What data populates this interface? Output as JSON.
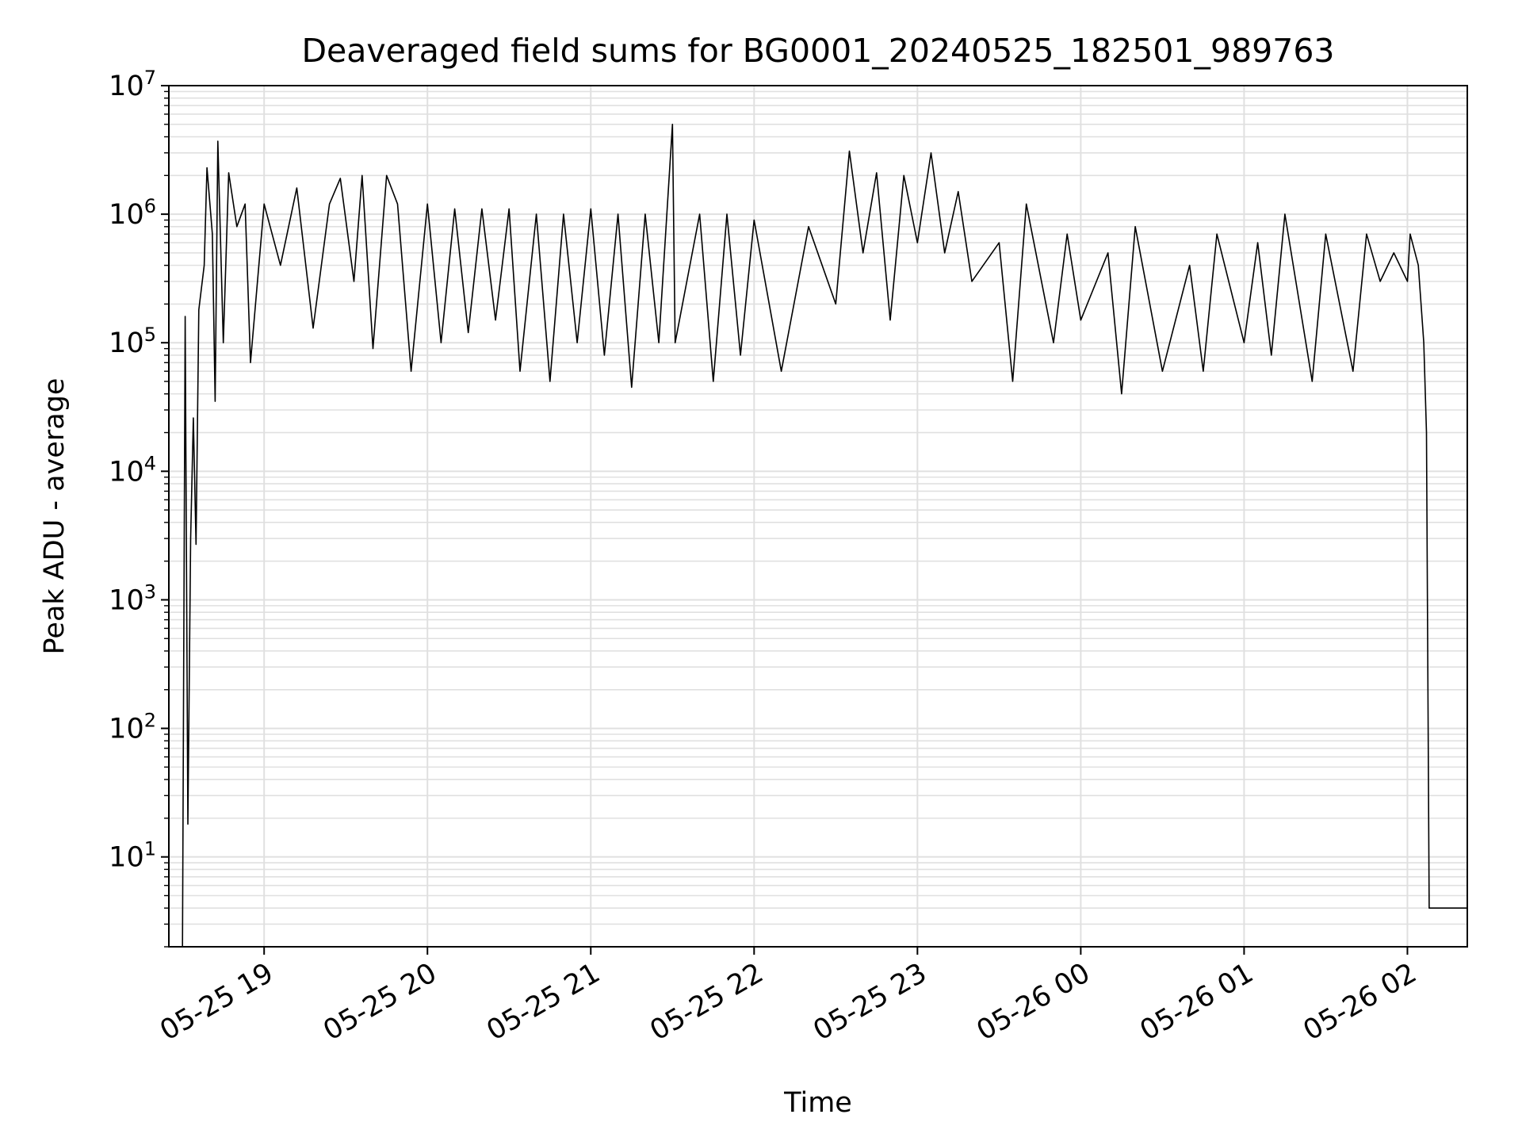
{
  "chart_data": {
    "type": "line",
    "title": "Deaveraged field sums for BG0001_20240525_182501_989763",
    "xlabel": "Time",
    "ylabel": "Peak ADU - average",
    "y_scale": "log",
    "ylim": [
      2,
      10000000
    ],
    "xlim": [
      "2024-05-25 18:25",
      "2024-05-26 02:22"
    ],
    "x_ticks": [
      "05-25 19",
      "05-25 20",
      "05-25 21",
      "05-25 22",
      "05-25 23",
      "05-26 00",
      "05-26 01",
      "05-26 02"
    ],
    "x_tick_times": [
      "2024-05-25 19:00",
      "2024-05-25 20:00",
      "2024-05-25 21:00",
      "2024-05-25 22:00",
      "2024-05-25 23:00",
      "2024-05-26 00:00",
      "2024-05-26 01:00",
      "2024-05-26 02:00"
    ],
    "y_ticks": [
      {
        "base": "10",
        "exp": "1",
        "value": 10
      },
      {
        "base": "10",
        "exp": "2",
        "value": 100
      },
      {
        "base": "10",
        "exp": "3",
        "value": 1000
      },
      {
        "base": "10",
        "exp": "4",
        "value": 10000
      },
      {
        "base": "10",
        "exp": "5",
        "value": 100000
      },
      {
        "base": "10",
        "exp": "6",
        "value": 1000000
      },
      {
        "base": "10",
        "exp": "7",
        "value": 10000000
      }
    ],
    "grid": true,
    "line_color": "#000000",
    "grid_color": "#e0e0e0",
    "series": [
      {
        "points": [
          [
            "2024-05-25 18:30",
            2
          ],
          [
            "2024-05-25 18:31",
            160000
          ],
          [
            "2024-05-25 18:32",
            18
          ],
          [
            "2024-05-25 18:33",
            3000
          ],
          [
            "2024-05-25 18:34",
            26000
          ],
          [
            "2024-05-25 18:35",
            2700
          ],
          [
            "2024-05-25 18:36",
            180000
          ],
          [
            "2024-05-25 18:38",
            400000
          ],
          [
            "2024-05-25 18:39",
            2300000
          ],
          [
            "2024-05-25 18:41",
            700000
          ],
          [
            "2024-05-25 18:42",
            35000
          ],
          [
            "2024-05-25 18:43",
            3700000
          ],
          [
            "2024-05-25 18:45",
            100000
          ],
          [
            "2024-05-25 18:47",
            2100000
          ],
          [
            "2024-05-25 18:50",
            800000
          ],
          [
            "2024-05-25 18:53",
            1200000
          ],
          [
            "2024-05-25 18:55",
            70000
          ],
          [
            "2024-05-25 19:00",
            1200000
          ],
          [
            "2024-05-25 19:06",
            400000
          ],
          [
            "2024-05-25 19:12",
            1600000
          ],
          [
            "2024-05-25 19:18",
            130000
          ],
          [
            "2024-05-25 19:24",
            1200000
          ],
          [
            "2024-05-25 19:28",
            1900000
          ],
          [
            "2024-05-25 19:33",
            300000
          ],
          [
            "2024-05-25 19:36",
            2000000
          ],
          [
            "2024-05-25 19:40",
            90000
          ],
          [
            "2024-05-25 19:45",
            2000000
          ],
          [
            "2024-05-25 19:49",
            1200000
          ],
          [
            "2024-05-25 19:54",
            60000
          ],
          [
            "2024-05-25 20:00",
            1200000
          ],
          [
            "2024-05-25 20:05",
            100000
          ],
          [
            "2024-05-25 20:10",
            1100000
          ],
          [
            "2024-05-25 20:15",
            120000
          ],
          [
            "2024-05-25 20:20",
            1100000
          ],
          [
            "2024-05-25 20:25",
            150000
          ],
          [
            "2024-05-25 20:30",
            1100000
          ],
          [
            "2024-05-25 20:34",
            60000
          ],
          [
            "2024-05-25 20:40",
            1000000
          ],
          [
            "2024-05-25 20:45",
            50000
          ],
          [
            "2024-05-25 20:50",
            1000000
          ],
          [
            "2024-05-25 20:55",
            100000
          ],
          [
            "2024-05-25 21:00",
            1100000
          ],
          [
            "2024-05-25 21:05",
            80000
          ],
          [
            "2024-05-25 21:10",
            1000000
          ],
          [
            "2024-05-25 21:15",
            45000
          ],
          [
            "2024-05-25 21:20",
            1000000
          ],
          [
            "2024-05-25 21:25",
            100000
          ],
          [
            "2024-05-25 21:30",
            5000000
          ],
          [
            "2024-05-25 21:31",
            100000
          ],
          [
            "2024-05-25 21:40",
            1000000
          ],
          [
            "2024-05-25 21:45",
            50000
          ],
          [
            "2024-05-25 21:50",
            1000000
          ],
          [
            "2024-05-25 21:55",
            80000
          ],
          [
            "2024-05-25 22:00",
            900000
          ],
          [
            "2024-05-25 22:10",
            60000
          ],
          [
            "2024-05-25 22:20",
            800000
          ],
          [
            "2024-05-25 22:30",
            200000
          ],
          [
            "2024-05-25 22:35",
            3100000
          ],
          [
            "2024-05-25 22:40",
            500000
          ],
          [
            "2024-05-25 22:45",
            2100000
          ],
          [
            "2024-05-25 22:50",
            150000
          ],
          [
            "2024-05-25 22:55",
            2000000
          ],
          [
            "2024-05-25 23:00",
            600000
          ],
          [
            "2024-05-25 23:05",
            3000000
          ],
          [
            "2024-05-25 23:10",
            500000
          ],
          [
            "2024-05-25 23:15",
            1500000
          ],
          [
            "2024-05-25 23:20",
            300000
          ],
          [
            "2024-05-25 23:30",
            600000
          ],
          [
            "2024-05-25 23:35",
            50000
          ],
          [
            "2024-05-25 23:40",
            1200000
          ],
          [
            "2024-05-25 23:50",
            100000
          ],
          [
            "2024-05-25 23:55",
            700000
          ],
          [
            "2024-05-26 00:00",
            150000
          ],
          [
            "2024-05-26 00:10",
            500000
          ],
          [
            "2024-05-26 00:15",
            40000
          ],
          [
            "2024-05-26 00:20",
            800000
          ],
          [
            "2024-05-26 00:30",
            60000
          ],
          [
            "2024-05-26 00:40",
            400000
          ],
          [
            "2024-05-26 00:45",
            60000
          ],
          [
            "2024-05-26 00:50",
            700000
          ],
          [
            "2024-05-26 01:00",
            100000
          ],
          [
            "2024-05-26 01:05",
            600000
          ],
          [
            "2024-05-26 01:10",
            80000
          ],
          [
            "2024-05-26 01:15",
            1000000
          ],
          [
            "2024-05-26 01:25",
            50000
          ],
          [
            "2024-05-26 01:30",
            700000
          ],
          [
            "2024-05-26 01:40",
            60000
          ],
          [
            "2024-05-26 01:45",
            700000
          ],
          [
            "2024-05-26 01:50",
            300000
          ],
          [
            "2024-05-26 01:55",
            500000
          ],
          [
            "2024-05-26 02:00",
            300000
          ],
          [
            "2024-05-26 02:01",
            700000
          ],
          [
            "2024-05-26 02:04",
            400000
          ],
          [
            "2024-05-26 02:06",
            100000
          ],
          [
            "2024-05-26 02:07",
            20000
          ],
          [
            "2024-05-26 02:08",
            4
          ],
          [
            "2024-05-26 02:22",
            4
          ]
        ]
      }
    ]
  }
}
